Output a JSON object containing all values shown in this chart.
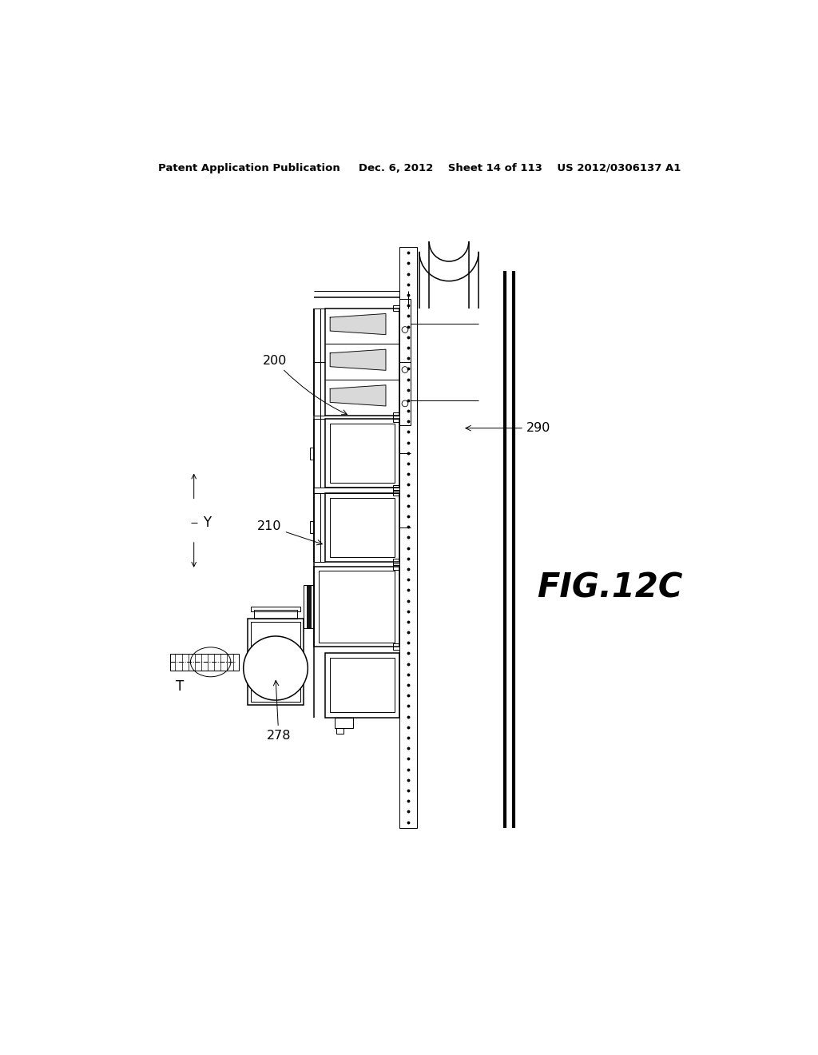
{
  "bg_color": "#ffffff",
  "line_color": "#000000",
  "header_text": "Patent Application Publication     Dec. 6, 2012    Sheet 14 of 113    US 2012/0306137 A1",
  "fig_label": "FIG.12C",
  "lw_thin": 0.7,
  "lw_med": 1.1,
  "lw_thick": 2.2,
  "lw_xthick": 3.0
}
